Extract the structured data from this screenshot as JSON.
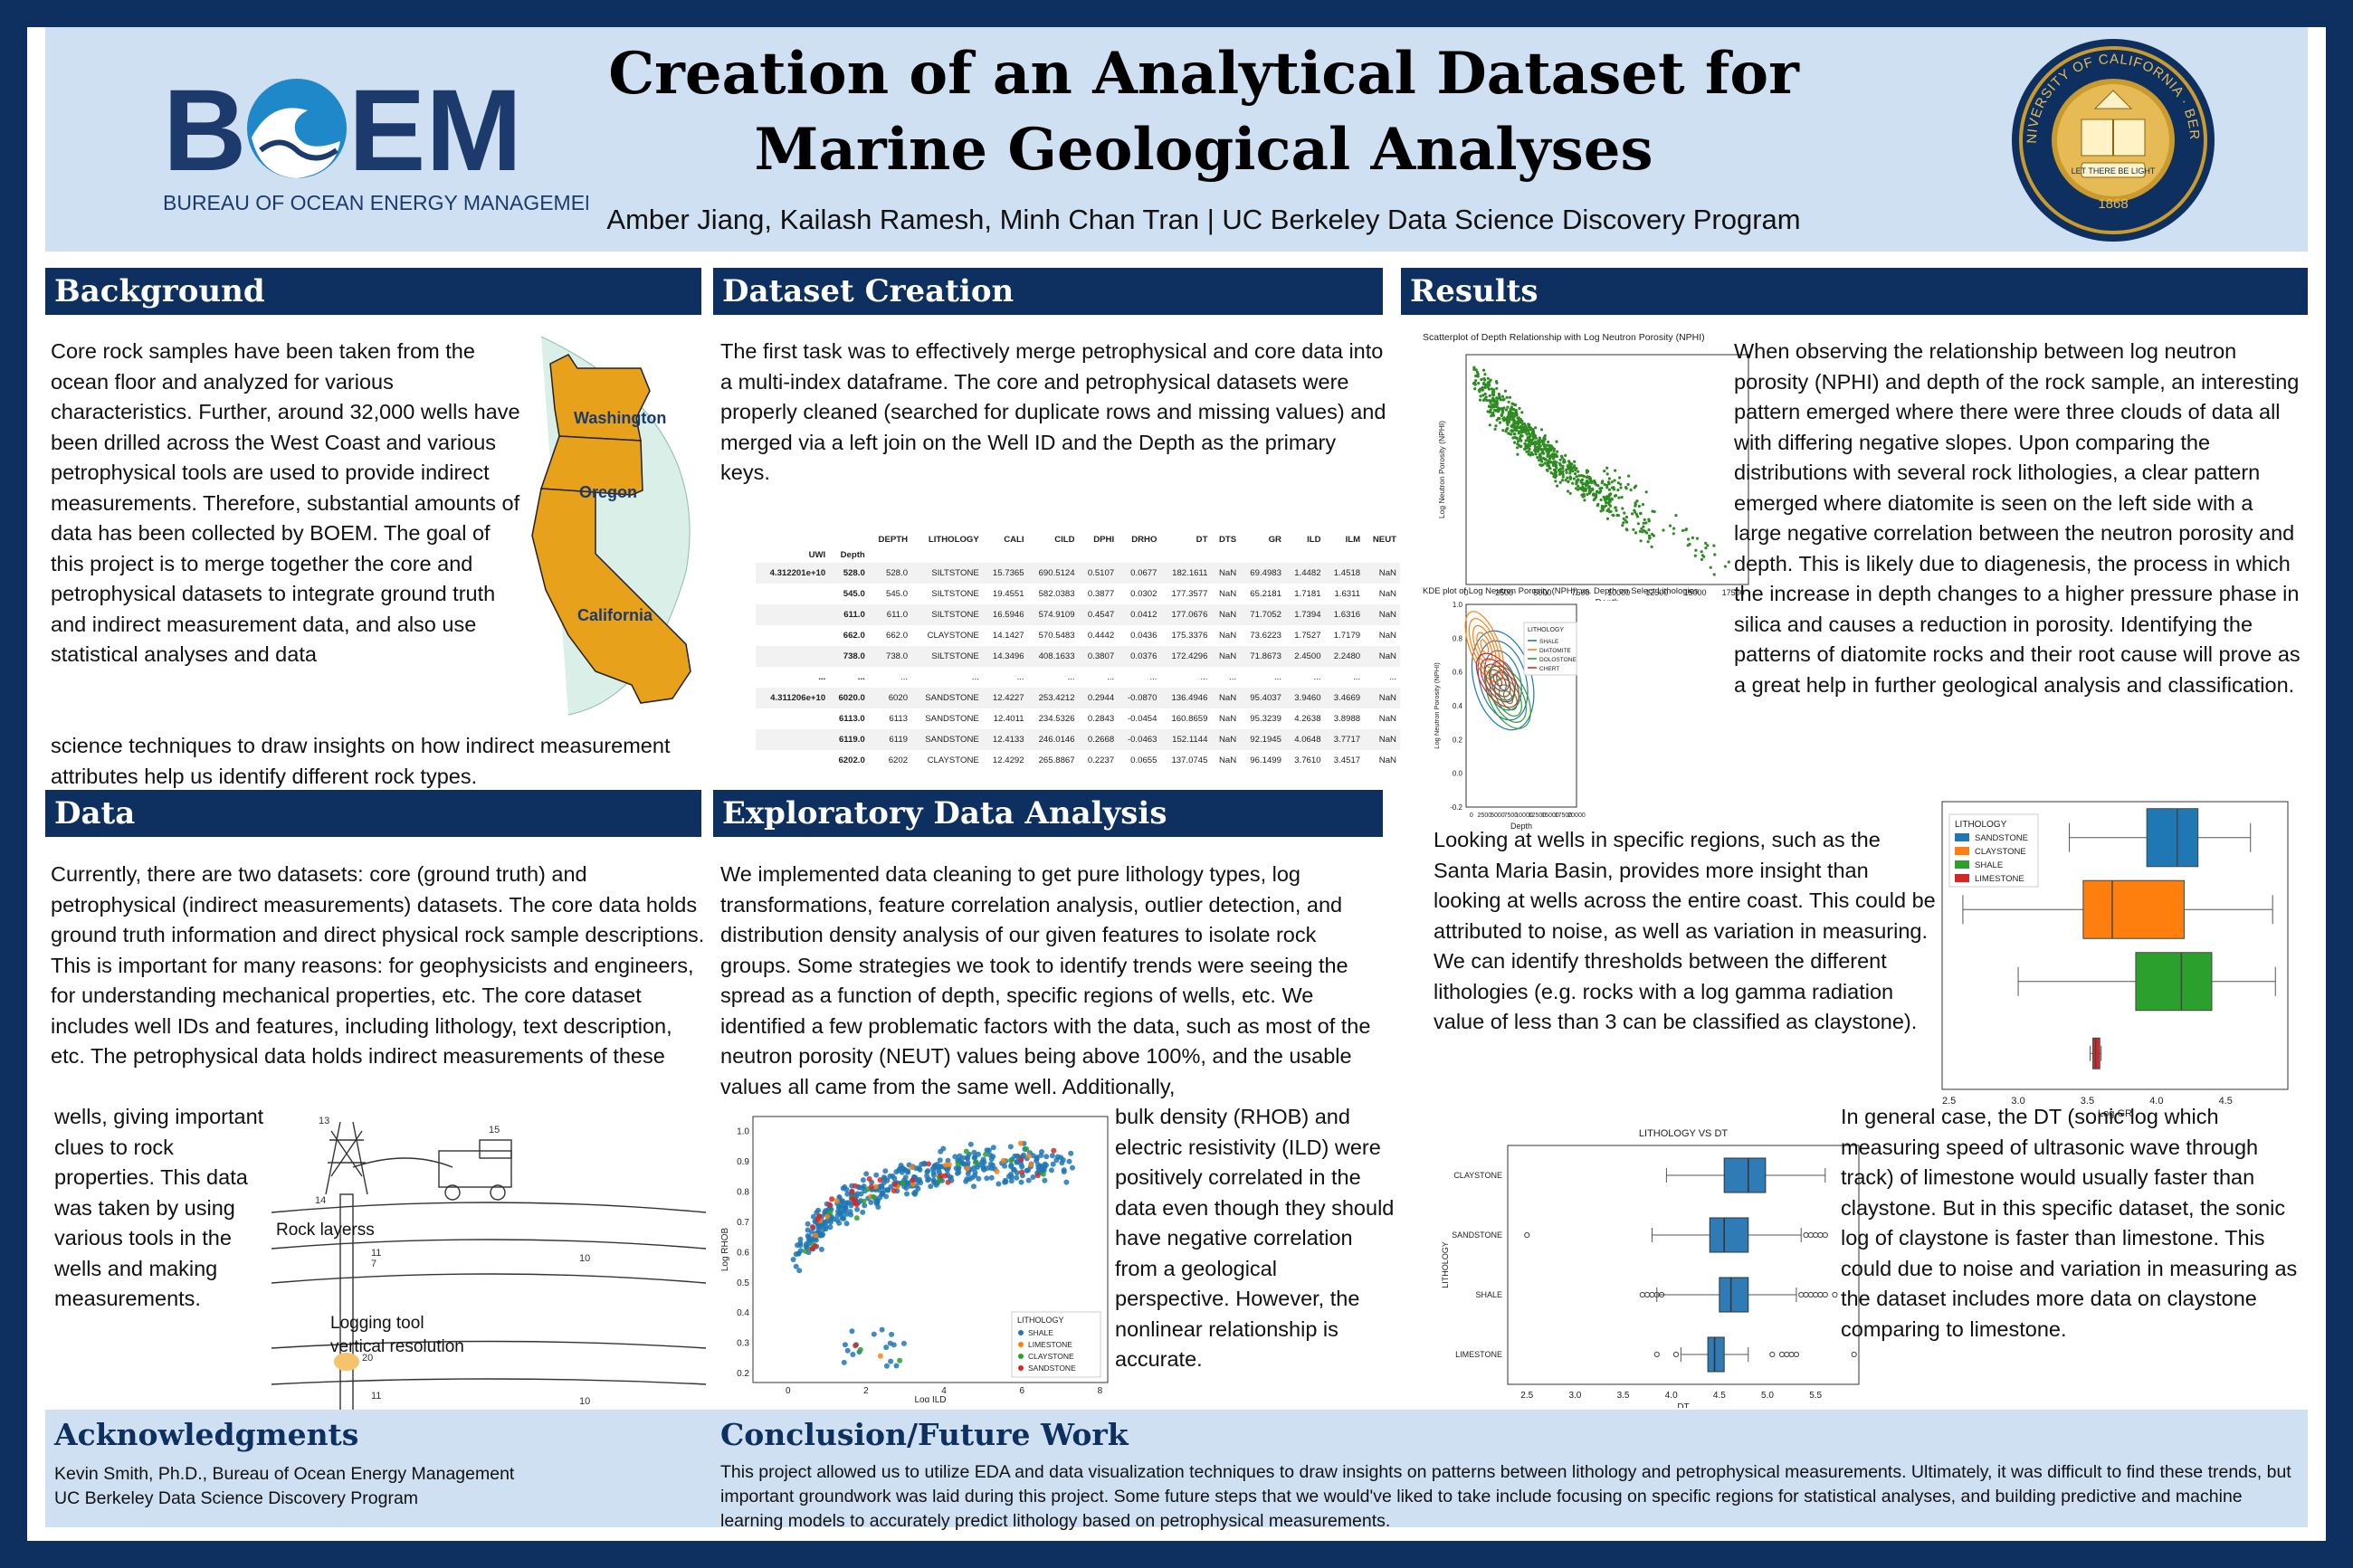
{
  "header": {
    "title_line1": "Creation of an Analytical Dataset for",
    "title_line2": "Marine Geological Analyses",
    "authors": "Amber Jiang, Kailash Ramesh, Minh Chan Tran | UC Berkeley Data Science Discovery Program",
    "boem_logo_text": "BOEM",
    "boem_logo_subtitle": "BUREAU OF OCEAN ENERGY MANAGEMENT",
    "seal_text": "THE UNIVERSITY OF CALIFORNIA · BERKELEY",
    "seal_motto": "LET THERE BE LIGHT",
    "seal_year": "1868"
  },
  "background": {
    "heading": "Background",
    "text": "Core rock samples have been taken from the ocean floor and analyzed for various characteristics. Further, around 32,000 wells have been drilled across the West Coast and various petrophysical tools are used to provide indirect measurements. Therefore, substantial amounts of data has been collected by BOEM. The goal of this project is to merge together the core and petrophysical datasets to integrate ground truth and indirect measurement data, and also use statistical analyses and data",
    "text_cont": "science techniques to draw insights on how indirect measurement attributes help us identify different rock types.",
    "map_labels": [
      "Washington",
      "Oregon",
      "California"
    ]
  },
  "data": {
    "heading": "Data",
    "text": "Currently, there are two datasets: core (ground truth) and petrophysical (indirect measurements) datasets. The core data holds ground truth information and direct physical rock sample descriptions. This is important for many reasons: for geophysicists and engineers, for understanding mechanical properties, etc. The core dataset includes well IDs and features, including lithology, text description, etc. The petrophysical data holds indirect measurements of these",
    "text_cont": "wells, giving important clues to rock properties. This data was taken by using various tools in the wells and making measurements.",
    "diagram_labels": {
      "rock_layers": "Rock layerss",
      "logging_tool": "Logging tool",
      "vertical_resolution": "vertical  resolution",
      "n13": "13",
      "n15": "15",
      "n14": "14",
      "n11": "11",
      "n7": "7",
      "n10": "10",
      "n20": "20"
    }
  },
  "dataset_creation": {
    "heading": "Dataset Creation",
    "text": "The first task was to effectively merge petrophysical and core data into a multi-index dataframe. The core and petrophysical datasets were properly cleaned (searched for duplicate rows and missing values) and merged via a left join on the Well ID and the Depth as the primary keys.",
    "table": {
      "columns": [
        "DEPTH",
        "LITHOLOGY",
        "CALI",
        "CILD",
        "DPHI",
        "DRHO",
        "DT",
        "DTS",
        "GR",
        "ILD",
        "ILM",
        "NEUT"
      ],
      "index_names": [
        "UWI",
        "Depth"
      ],
      "rows": [
        [
          "4.312201e+10",
          "528.0",
          "528.0",
          "SILTSTONE",
          "15.7365",
          "690.5124",
          "0.5107",
          "0.0677",
          "182.1611",
          "NaN",
          "69.4983",
          "1.4482",
          "1.4518",
          "NaN"
        ],
        [
          "",
          "545.0",
          "545.0",
          "SILTSTONE",
          "19.4551",
          "582.0383",
          "0.3877",
          "0.0302",
          "177.3577",
          "NaN",
          "65.2181",
          "1.7181",
          "1.6311",
          "NaN"
        ],
        [
          "",
          "611.0",
          "611.0",
          "SILTSTONE",
          "16.5946",
          "574.9109",
          "0.4547",
          "0.0412",
          "177.0676",
          "NaN",
          "71.7052",
          "1.7394",
          "1.6316",
          "NaN"
        ],
        [
          "",
          "662.0",
          "662.0",
          "CLAYSTONE",
          "14.1427",
          "570.5483",
          "0.4442",
          "0.0436",
          "175.3376",
          "NaN",
          "73.6223",
          "1.7527",
          "1.7179",
          "NaN"
        ],
        [
          "",
          "738.0",
          "738.0",
          "SILTSTONE",
          "14.3496",
          "408.1633",
          "0.3807",
          "0.0376",
          "172.4296",
          "NaN",
          "71.8673",
          "2.4500",
          "2.2480",
          "NaN"
        ],
        [
          "...",
          "...",
          "...",
          "...",
          "...",
          "...",
          "...",
          "...",
          "...",
          "...",
          "...",
          "...",
          "...",
          "..."
        ],
        [
          "4.311206e+10",
          "6020.0",
          "6020",
          "SANDSTONE",
          "12.4227",
          "253.4212",
          "0.2944",
          "-0.0870",
          "136.4946",
          "NaN",
          "95.4037",
          "3.9460",
          "3.4669",
          "NaN"
        ],
        [
          "",
          "6113.0",
          "6113",
          "SANDSTONE",
          "12.4011",
          "234.5326",
          "0.2843",
          "-0.0454",
          "160.8659",
          "NaN",
          "95.3239",
          "4.2638",
          "3.8988",
          "NaN"
        ],
        [
          "",
          "6119.0",
          "6119",
          "SANDSTONE",
          "12.4133",
          "246.0146",
          "0.2668",
          "-0.0463",
          "152.1144",
          "NaN",
          "92.1945",
          "4.0648",
          "3.7717",
          "NaN"
        ],
        [
          "",
          "6202.0",
          "6202",
          "CLAYSTONE",
          "12.4292",
          "265.8867",
          "0.2237",
          "0.0655",
          "137.0745",
          "NaN",
          "96.1499",
          "3.7610",
          "3.4517",
          "NaN"
        ]
      ]
    }
  },
  "eda": {
    "heading": "Exploratory Data Analysis",
    "text": "We implemented data cleaning to get pure lithology types, log transformations, feature correlation analysis, outlier detection, and distribution density analysis of our given features to isolate rock groups. Some strategies we took to identify trends were seeing the spread as a function of depth, specific regions of wells, etc. We identified a few problematic factors with the data, such as most of the neutron porosity (NEUT) values being above 100%, and the usable values all came from the same well. Additionally,",
    "text_cont": "bulk density (RHOB) and electric resistivity (ILD) were positively correlated in the data even though they should have negative correlation from a geological perspective. However, the nonlinear relationship is accurate."
  },
  "results": {
    "heading": "Results",
    "text1": "When observing the relationship between log neutron porosity (NPHI) and depth of the rock sample, an interesting pattern emerged where there were three clouds of data all with differing negative slopes. Upon comparing the distributions with several rock lithologies, a clear pattern emerged where diatomite is seen on the left side with a large negative correlation between the neutron porosity and depth. This is likely due to diagenesis, the process in which the increase in depth changes to a higher pressure phase in silica and causes a reduction in porosity. Identifying the patterns of diatomite rocks and their root cause will prove as a great help in further geological analysis and classification.",
    "text2": "Looking at wells in specific regions, such as the Santa Maria Basin, provides more insight than looking at wells across the entire coast. This could be attributed to noise, as well as variation in measuring. We can identify thresholds between the different lithologies (e.g. rocks with a log gamma radiation value of less than 3 can be classified as claystone).",
    "text3": "In general case, the DT (sonic log which measuring speed of ultrasonic wave through track) of limestone would usually faster than claystone. But in this specific dataset, the sonic log of claystone is faster than limestone. This could due to noise and variation in measuring as the dataset includes more data on claystone comparing to limestone."
  },
  "acknowledgments": {
    "heading": "Acknowledgments",
    "line1": "Kevin Smith, Ph.D., Bureau of Ocean Energy Management",
    "line2": "UC Berkeley Data Science Discovery Program"
  },
  "conclusion": {
    "heading": "Conclusion/Future Work",
    "text": "This project allowed us to utilize EDA and data visualization techniques to draw insights on patterns between lithology and petrophysical measurements. Ultimately, it was difficult to find these trends, but important groundwork was laid during this project. Some future steps that we would've liked to take include focusing on specific regions for statistical analyses, and building predictive and machine learning models to accurately predict lithology based on petrophysical measurements."
  },
  "colors": {
    "navy": "#0d3060",
    "header_bg": "#cfe0f3",
    "sandstone": "#1f77b4",
    "claystone": "#ff7f0e",
    "shale": "#2ca02c",
    "limestone": "#d62728"
  },
  "chart_data": [
    {
      "id": "scatter_depth_nphi",
      "type": "scatter",
      "title": "Scatterplot of Depth Relationship with Log Neutron Porosity (NPHI)",
      "xlabel": "Depth",
      "ylabel": "Log Neutron Porosity (NPHI)",
      "xlim": [
        0,
        18500
      ],
      "ylim": [
        -0.05,
        1.1
      ],
      "xticks": [
        "0",
        "2500",
        "5000",
        "7500",
        "10000",
        "12500",
        "15000",
        "17500"
      ],
      "color": "#2e8b22",
      "clusters": [
        {
          "x_range": [
            500,
            6000
          ],
          "y_range": [
            0.55,
            1.0
          ],
          "n": 260
        },
        {
          "x_range": [
            1500,
            9500
          ],
          "y_range": [
            0.35,
            0.85
          ],
          "n": 260
        },
        {
          "x_range": [
            3000,
            12500
          ],
          "y_range": [
            0.2,
            0.7
          ],
          "n": 200
        },
        {
          "x_range": [
            9000,
            17500
          ],
          "y_range": [
            0.0,
            0.5
          ],
          "n": 60
        }
      ]
    },
    {
      "id": "kde_nphi_depth",
      "type": "kde",
      "title": "KDE plot of Log Neutron Porosity (NPHI) vs. Depth on Select Lithologies",
      "xlabel": "Depth",
      "ylabel": "Log Neutron Porosity (NPHI)",
      "xlim": [
        -1000,
        20000
      ],
      "ylim": [
        -0.2,
        1.0
      ],
      "xticks": [
        "0",
        "2500",
        "5000",
        "7500",
        "10000",
        "12500",
        "15000",
        "17500",
        "20000"
      ],
      "yticks": [
        "-0.2",
        "0.0",
        "0.2",
        "0.4",
        "0.6",
        "0.8",
        "1.0"
      ],
      "legend_title": "LITHOLOGY",
      "series": [
        {
          "name": "SHALE",
          "color": "#1f77b4",
          "center": [
            6000,
            0.55
          ],
          "spread": [
            5500,
            0.3
          ]
        },
        {
          "name": "DIATOMITE",
          "color": "#ff7f0e",
          "center": [
            2500,
            0.75
          ],
          "spread": [
            2800,
            0.22
          ]
        },
        {
          "name": "DOLOSTONE",
          "color": "#2ca02c",
          "center": [
            7000,
            0.45
          ],
          "spread": [
            3500,
            0.2
          ]
        },
        {
          "name": "CHERT",
          "color": "#d62728",
          "center": [
            5000,
            0.55
          ],
          "spread": [
            3000,
            0.18
          ]
        }
      ]
    },
    {
      "id": "box_log_gr",
      "type": "box",
      "orientation": "horizontal",
      "xlabel": "Log GR",
      "xlim": [
        2.45,
        4.95
      ],
      "xticks": [
        2.5,
        3.0,
        3.5,
        4.0,
        4.5
      ],
      "legend_title": "LITHOLOGY",
      "series": [
        {
          "name": "SANDSTONE",
          "color": "#1f77b4",
          "min": 3.37,
          "q1": 3.93,
          "median": 4.15,
          "q3": 4.3,
          "max": 4.68
        },
        {
          "name": "CLAYSTONE",
          "color": "#ff7f0e",
          "min": 2.6,
          "q1": 3.47,
          "median": 3.68,
          "q3": 4.2,
          "max": 4.84
        },
        {
          "name": "SHALE",
          "color": "#2ca02c",
          "min": 3.0,
          "q1": 3.85,
          "median": 4.18,
          "q3": 4.4,
          "max": 4.86
        },
        {
          "name": "LIMESTONE",
          "color": "#d62728",
          "min": 3.52,
          "q1": 3.54,
          "median": 3.56,
          "q3": 3.59,
          "max": 3.6
        }
      ]
    },
    {
      "id": "box_dt",
      "type": "box",
      "orientation": "horizontal",
      "title": "LITHOLOGY VS DT",
      "xlabel": "DT",
      "ylabel": "LITHOLOGY",
      "xlim": [
        2.3,
        5.95
      ],
      "xticks": [
        "2.5",
        "3.0",
        "3.5",
        "4.0",
        "4.5",
        "5.0",
        "5.5"
      ],
      "color": "#2f7bb6",
      "series": [
        {
          "name": "CLAYSTONE",
          "min": 3.95,
          "q1": 4.55,
          "median": 4.8,
          "q3": 4.98,
          "max": 5.6,
          "outliers": []
        },
        {
          "name": "SANDSTONE",
          "min": 3.8,
          "q1": 4.4,
          "median": 4.55,
          "q3": 4.8,
          "max": 5.35,
          "outliers": [
            2.5,
            5.4,
            5.45,
            5.5,
            5.55,
            5.6
          ]
        },
        {
          "name": "SHALE",
          "min": 3.85,
          "q1": 4.5,
          "median": 4.62,
          "q3": 4.8,
          "max": 5.3,
          "outliers": [
            3.7,
            3.75,
            3.8,
            3.85,
            3.9,
            5.35,
            5.4,
            5.45,
            5.5,
            5.55,
            5.6,
            5.7
          ]
        },
        {
          "name": "LIMESTONE",
          "min": 4.1,
          "q1": 4.38,
          "median": 4.45,
          "q3": 4.55,
          "max": 4.8,
          "outliers": [
            3.85,
            4.05,
            5.05,
            5.15,
            5.2,
            5.25,
            5.3,
            5.9
          ]
        }
      ]
    },
    {
      "id": "scatter_rhob_ild",
      "type": "scatter",
      "xlabel": "Log ILD",
      "ylabel": "Log RHOB",
      "xlim": [
        -0.9,
        8.2
      ],
      "ylim": [
        0.17,
        1.05
      ],
      "xticks": [
        0,
        2,
        4,
        6,
        8
      ],
      "yticks": [
        0.2,
        0.3,
        0.4,
        0.5,
        0.6,
        0.7,
        0.8,
        0.9,
        1.0
      ],
      "legend_title": "LITHOLOGY",
      "series": [
        {
          "name": "SHALE",
          "color": "#1f77b4",
          "n": 420
        },
        {
          "name": "LIMESTONE",
          "color": "#ff7f0e",
          "n": 18
        },
        {
          "name": "CLAYSTONE",
          "color": "#2ca02c",
          "n": 20
        },
        {
          "name": "SANDSTONE",
          "color": "#d62728",
          "n": 28
        }
      ]
    }
  ]
}
